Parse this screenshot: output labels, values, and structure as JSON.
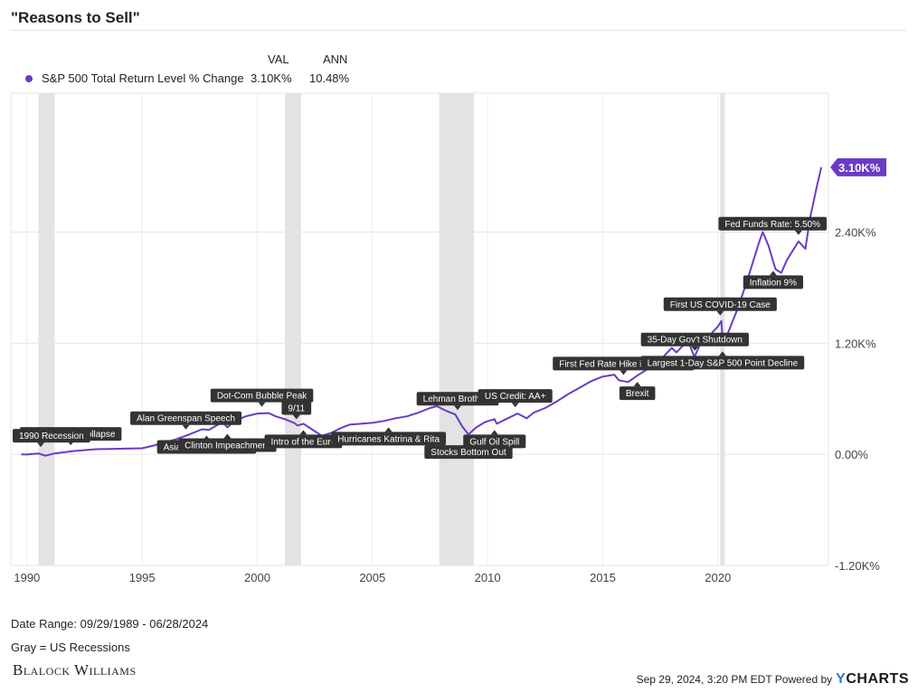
{
  "header": {
    "title": "\"Reasons to Sell\""
  },
  "legend": {
    "col_val": "VAL",
    "col_ann": "ANN",
    "series_name": "S&P 500 Total Return Level % Change",
    "val": "3.10K%",
    "ann": "10.48%"
  },
  "colors": {
    "series": "#6a3bc6",
    "recession": "#e3e3e3",
    "label_bg": "#333333"
  },
  "chart_data": {
    "type": "line",
    "title": "\"Reasons to Sell\"",
    "xlabel": "",
    "ylabel": "",
    "xlim": [
      1989.3,
      2024.8
    ],
    "ylim": [
      -1200,
      3900
    ],
    "x_ticks": [
      {
        "value": 1990,
        "label": "1990"
      },
      {
        "value": 1995,
        "label": "1995"
      },
      {
        "value": 2000,
        "label": "2000"
      },
      {
        "value": 2005,
        "label": "2005"
      },
      {
        "value": 2010,
        "label": "2010"
      },
      {
        "value": 2015,
        "label": "2015"
      },
      {
        "value": 2020,
        "label": "2020"
      }
    ],
    "y_ticks": [
      {
        "value": 2400,
        "label": "2.40K%"
      },
      {
        "value": 1200,
        "label": "1.20K%"
      },
      {
        "value": 0,
        "label": "0.00%"
      },
      {
        "value": -1200,
        "label": "-1.20K%"
      }
    ],
    "recessions": [
      [
        1990.5,
        1991.2
      ],
      [
        2001.2,
        2001.9
      ],
      [
        2007.9,
        2009.4
      ],
      [
        2020.1,
        2020.3
      ]
    ],
    "series": [
      {
        "name": "S&P 500 Total Return Level % Change",
        "points": [
          [
            1989.75,
            0
          ],
          [
            1990.0,
            -2
          ],
          [
            1990.5,
            10
          ],
          [
            1990.8,
            -15
          ],
          [
            1991.2,
            10
          ],
          [
            1992.0,
            35
          ],
          [
            1993.0,
            55
          ],
          [
            1994.0,
            60
          ],
          [
            1995.0,
            65
          ],
          [
            1995.5,
            95
          ],
          [
            1996.0,
            130
          ],
          [
            1996.5,
            165
          ],
          [
            1997.0,
            210
          ],
          [
            1997.6,
            270
          ],
          [
            1997.9,
            265
          ],
          [
            1998.5,
            350
          ],
          [
            1998.7,
            290
          ],
          [
            1999.0,
            360
          ],
          [
            1999.5,
            410
          ],
          [
            2000.0,
            440
          ],
          [
            2000.5,
            445
          ],
          [
            2000.8,
            410
          ],
          [
            2001.2,
            380
          ],
          [
            2001.6,
            340
          ],
          [
            2001.75,
            310
          ],
          [
            2002.0,
            330
          ],
          [
            2002.5,
            250
          ],
          [
            2002.8,
            200
          ],
          [
            2003.2,
            230
          ],
          [
            2003.6,
            280
          ],
          [
            2004.0,
            320
          ],
          [
            2004.5,
            330
          ],
          [
            2005.0,
            340
          ],
          [
            2005.5,
            360
          ],
          [
            2006.0,
            390
          ],
          [
            2006.5,
            410
          ],
          [
            2007.0,
            450
          ],
          [
            2007.5,
            500
          ],
          [
            2007.8,
            520
          ],
          [
            2008.2,
            470
          ],
          [
            2008.6,
            430
          ],
          [
            2008.9,
            300
          ],
          [
            2009.17,
            215
          ],
          [
            2009.5,
            290
          ],
          [
            2009.9,
            350
          ],
          [
            2010.3,
            380
          ],
          [
            2010.4,
            330
          ],
          [
            2010.8,
            380
          ],
          [
            2011.3,
            440
          ],
          [
            2011.7,
            390
          ],
          [
            2012.0,
            450
          ],
          [
            2012.5,
            500
          ],
          [
            2013.0,
            570
          ],
          [
            2013.5,
            650
          ],
          [
            2014.0,
            720
          ],
          [
            2014.5,
            790
          ],
          [
            2015.0,
            840
          ],
          [
            2015.5,
            860
          ],
          [
            2015.7,
            800
          ],
          [
            2016.1,
            780
          ],
          [
            2016.5,
            850
          ],
          [
            2017.0,
            930
          ],
          [
            2017.5,
            1020
          ],
          [
            2018.0,
            1150
          ],
          [
            2018.2,
            1100
          ],
          [
            2018.7,
            1230
          ],
          [
            2018.98,
            1050
          ],
          [
            2019.3,
            1230
          ],
          [
            2019.7,
            1300
          ],
          [
            2020.0,
            1380
          ],
          [
            2020.15,
            1440
          ],
          [
            2020.22,
            1180
          ],
          [
            2020.5,
            1350
          ],
          [
            2020.9,
            1600
          ],
          [
            2021.3,
            1900
          ],
          [
            2021.8,
            2300
          ],
          [
            2021.95,
            2400
          ],
          [
            2022.2,
            2250
          ],
          [
            2022.5,
            2000
          ],
          [
            2022.75,
            1960
          ],
          [
            2023.0,
            2100
          ],
          [
            2023.5,
            2300
          ],
          [
            2023.8,
            2220
          ],
          [
            2024.0,
            2550
          ],
          [
            2024.3,
            2900
          ],
          [
            2024.49,
            3100
          ]
        ]
      }
    ],
    "end_label": "3.10K%",
    "annotations": [
      {
        "text": "Soviet Union Collapse",
        "x": 1991.9,
        "y": 30,
        "pos": "above"
      },
      {
        "text": "1990 Recession",
        "x": 1990.6,
        "y": 10,
        "pos": "above"
      },
      {
        "text": "Alan Greenspan Speech",
        "x": 1996.9,
        "y": 200,
        "pos": "above"
      },
      {
        "text": "Asian Financial Crisis",
        "x": 1997.8,
        "y": 270,
        "pos": "below"
      },
      {
        "text": "Clinton Impeachment",
        "x": 1998.7,
        "y": 290,
        "pos": "below"
      },
      {
        "text": "Dot-Com Bubble Peak",
        "x": 2000.2,
        "y": 445,
        "pos": "above"
      },
      {
        "text": "9/11",
        "x": 2001.7,
        "y": 310,
        "pos": "above"
      },
      {
        "text": "Intro of the Euro",
        "x": 2002.0,
        "y": 330,
        "pos": "below"
      },
      {
        "text": "Hurricanes Katrina & Rita",
        "x": 2005.7,
        "y": 360,
        "pos": "below"
      },
      {
        "text": "Lehman Brothers",
        "x": 2008.7,
        "y": 410,
        "pos": "above"
      },
      {
        "text": "Stocks Bottom Out",
        "x": 2009.17,
        "y": 215,
        "pos": "below"
      },
      {
        "text": "Gulf Oil Spill",
        "x": 2010.3,
        "y": 330,
        "pos": "below"
      },
      {
        "text": "US Credit: AA+",
        "x": 2011.2,
        "y": 440,
        "pos": "above"
      },
      {
        "text": "First Fed Rate Hike in a Decade",
        "x": 2015.9,
        "y": 790,
        "pos": "above"
      },
      {
        "text": "Brexit",
        "x": 2016.5,
        "y": 850,
        "pos": "below"
      },
      {
        "text": "35-Day Gov't Shutdown",
        "x": 2019.0,
        "y": 1050,
        "pos": "above"
      },
      {
        "text": "First US COVID-19 Case",
        "x": 2020.1,
        "y": 1430,
        "pos": "above"
      },
      {
        "text": "Largest 1-Day S&P 500 Point Decline",
        "x": 2020.2,
        "y": 1180,
        "pos": "below"
      },
      {
        "text": "Inflation 9%",
        "x": 2022.4,
        "y": 2050,
        "pos": "below"
      },
      {
        "text": "Fed Funds Rate: 5.50%",
        "x": 2023.5,
        "y": 2300,
        "pos": "above"
      }
    ]
  },
  "footer": {
    "date_range": "Date Range: 09/29/1989 - 06/28/2024",
    "recession_note": "Gray = US Recessions",
    "brand": "Blalock Williams",
    "timestamp": "Sep 29, 2024, 3:20 PM EDT Powered by",
    "ycharts_y": "Y",
    "ycharts_rest": "CHARTS"
  }
}
